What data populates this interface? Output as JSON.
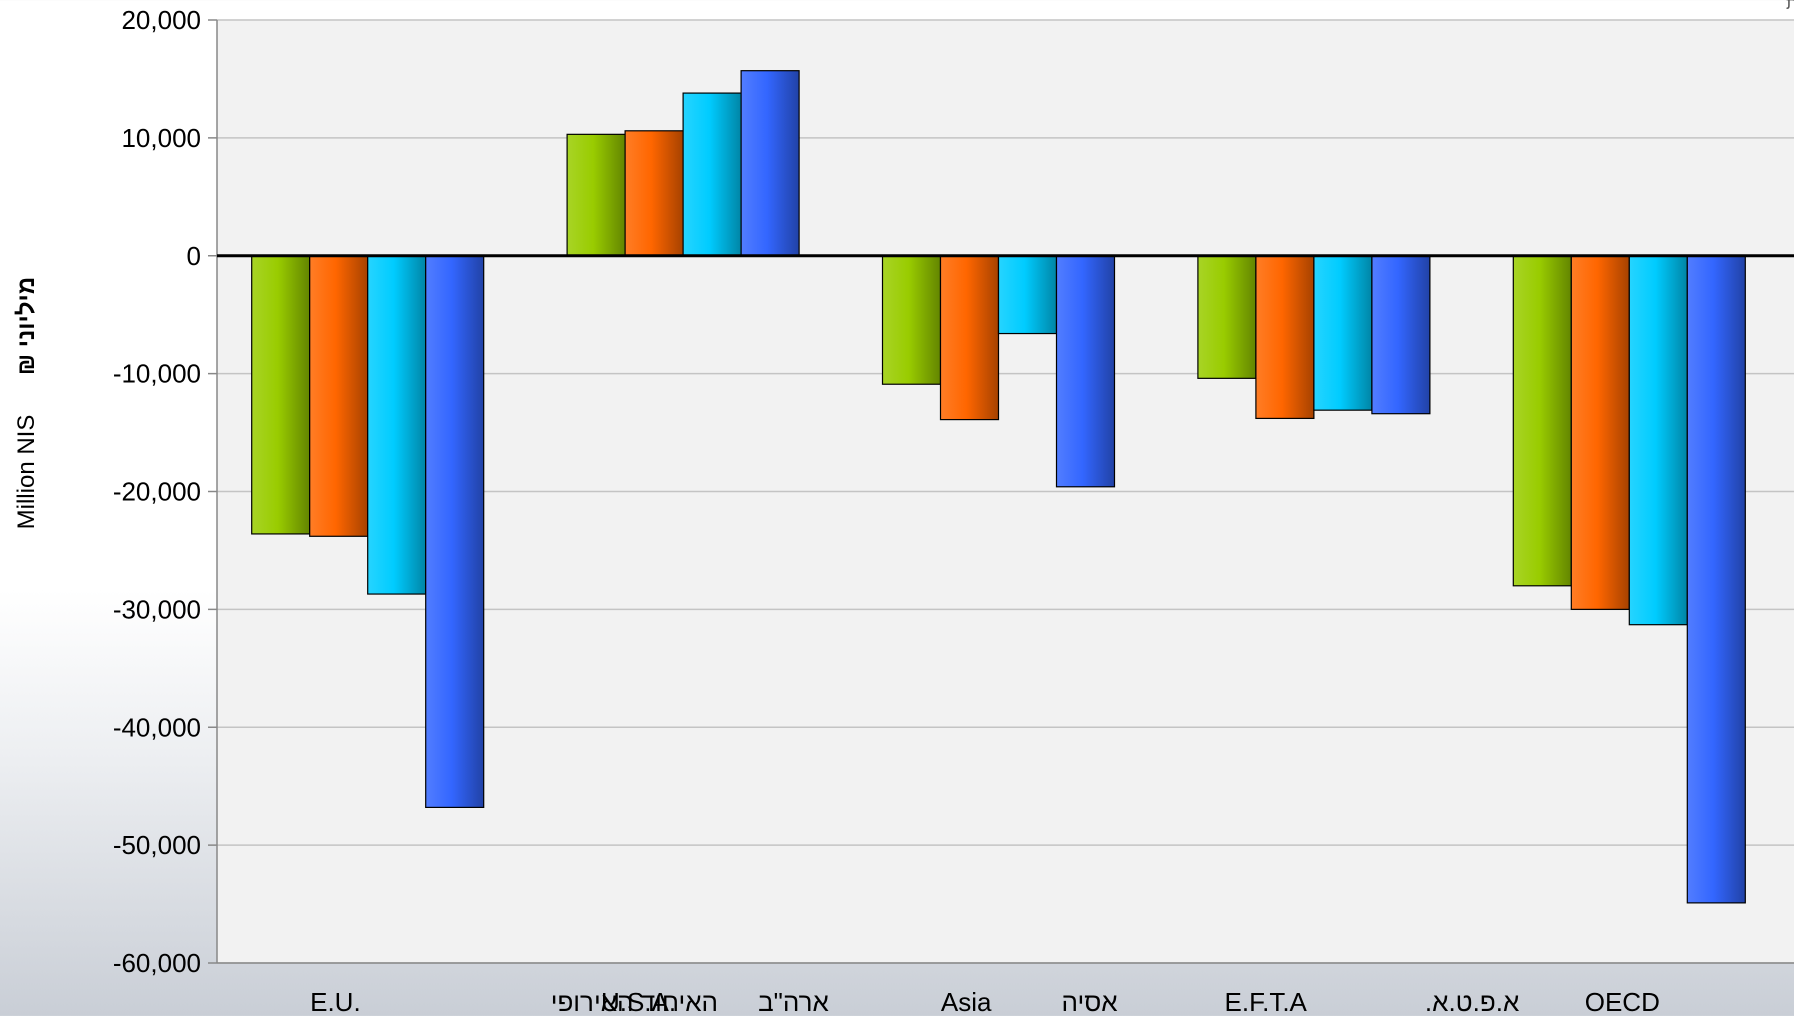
{
  "chart_data": {
    "type": "bar",
    "title": "",
    "xlabel": "",
    "ylabel": "Million NIS",
    "ylabel_hebrew": "מיליוני ₪",
    "ylim": [
      -60000,
      20000
    ],
    "yticks": [
      20000,
      10000,
      0,
      -10000,
      -20000,
      -30000,
      -40000,
      -50000,
      -60000
    ],
    "ytick_labels": [
      "20,000",
      "10,000",
      "0",
      "-10,000",
      "-20,000",
      "-30,000",
      "-40,000",
      "-50,000",
      "-60,000"
    ],
    "grid": true,
    "legend": "none",
    "categories": [
      {
        "en": "E.U.",
        "he": "האיחוד האירופי"
      },
      {
        "en": "U.S.A.",
        "he": "ארה\"ב"
      },
      {
        "en": "Asia",
        "he": "אסיה"
      },
      {
        "en": "E.F.T.A",
        "he": "א.פ.ט.א."
      },
      {
        "en": "OECD",
        "he": ""
      }
    ],
    "series": [
      {
        "color": "#99cc00",
        "values": [
          -23600,
          10300,
          -10900,
          -10400,
          -28000
        ]
      },
      {
        "color": "#ff6600",
        "values": [
          -23800,
          10600,
          -13900,
          -13800,
          -30000
        ]
      },
      {
        "color": "#00ccff",
        "values": [
          -28700,
          13800,
          -6600,
          -13100,
          -31300
        ]
      },
      {
        "color": "#3366ff",
        "values": [
          -46800,
          15700,
          -19600,
          -13400,
          -54900
        ]
      }
    ]
  },
  "corner_note": "בנה אוטומטית"
}
